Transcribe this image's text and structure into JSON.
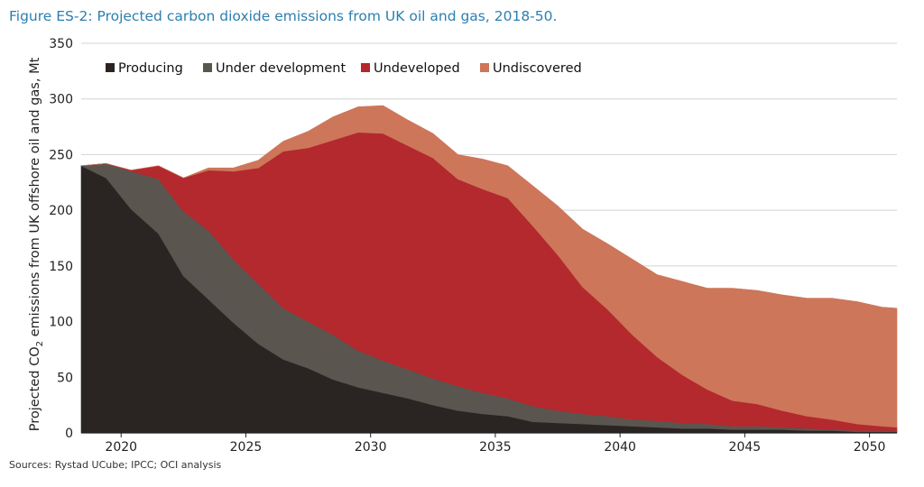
{
  "title": "Figure ES-2: Projected carbon dioxide emissions from UK oil and gas, 2018-50.",
  "source": "Sources: Rystad UCube; IPCC; OCI analysis",
  "chart_data": {
    "type": "area",
    "stacked": true,
    "ylabel_parts": [
      "Projected CO",
      "2",
      " emissions from UK offshore oil and gas, Mt"
    ],
    "ylim": [
      0,
      350
    ],
    "xlim": [
      2018.4,
      2051.1
    ],
    "y_ticks": [
      0,
      50,
      100,
      150,
      200,
      250,
      300,
      350
    ],
    "x_ticks": [
      2020,
      2025,
      2030,
      2035,
      2040,
      2045,
      2050
    ],
    "grid": true,
    "legend_position": "top-left",
    "x": [
      2018.4,
      2019.4,
      2020.4,
      2021.5,
      2022.5,
      2023.5,
      2024.5,
      2025.5,
      2026.5,
      2027.5,
      2028.5,
      2029.5,
      2030.5,
      2031.5,
      2032.5,
      2033.5,
      2034.5,
      2035.5,
      2036.5,
      2037.5,
      2038.5,
      2039.5,
      2040.5,
      2041.5,
      2042.5,
      2043.5,
      2044.5,
      2045.5,
      2046.5,
      2047.5,
      2048.5,
      2049.5,
      2050.5,
      2051.1
    ],
    "series": [
      {
        "name": "Producing",
        "color": "#2a2522",
        "values": [
          240,
          229,
          201,
          179,
          141,
          120,
          99,
          80,
          66,
          58,
          48,
          41,
          36,
          31,
          25,
          20,
          17,
          15,
          10,
          9,
          8,
          7,
          6,
          5,
          4,
          4,
          3,
          3,
          3,
          2,
          2,
          1,
          1,
          1
        ]
      },
      {
        "name": "Under development",
        "color": "#5b5550",
        "values": [
          0,
          13,
          34,
          49,
          58,
          62,
          57,
          54,
          46,
          42,
          40,
          33,
          29,
          26,
          24,
          22,
          19,
          16,
          14,
          11,
          9,
          8,
          6,
          6,
          5,
          4,
          3,
          3,
          2,
          2,
          1,
          1,
          1,
          1
        ]
      },
      {
        "name": "Undeveloped",
        "color": "#b3292e",
        "values": [
          0,
          0,
          1,
          12,
          30,
          54,
          79,
          104,
          141,
          156,
          175,
          196,
          204,
          201,
          198,
          186,
          183,
          180,
          162,
          140,
          114,
          96,
          76,
          57,
          43,
          31,
          23,
          20,
          15,
          11,
          9,
          6,
          4,
          3
        ]
      },
      {
        "name": "Undiscovered",
        "color": "#cd765a",
        "values": [
          0,
          0,
          0,
          0,
          0,
          2,
          3,
          7,
          9,
          15,
          21,
          23,
          25,
          23,
          22,
          22,
          27,
          29,
          36,
          44,
          52,
          59,
          68,
          74,
          84,
          91,
          101,
          102,
          104,
          106,
          109,
          110,
          107,
          107
        ]
      }
    ]
  }
}
